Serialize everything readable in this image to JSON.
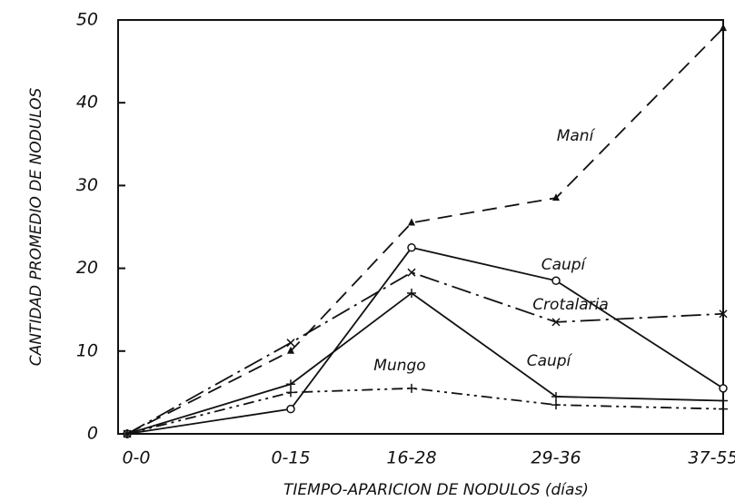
{
  "chart_data": {
    "type": "line",
    "x_label": "TIEMPO-APARICION DE NODULOS (días)",
    "y_label": "CANTIDAD PROMEDIO DE NODULOS",
    "categories": [
      "0-0",
      "0-15",
      "16-28",
      "29-36",
      "37-55"
    ],
    "ylim": [
      0,
      50
    ],
    "yticks": [
      0,
      10,
      20,
      30,
      40,
      50
    ],
    "series": [
      {
        "name": "Maní",
        "color": "#111111",
        "values": [
          0,
          10,
          25.5,
          28.5,
          49
        ]
      },
      {
        "name": "Caupí",
        "color": "#111111",
        "values": [
          0,
          3,
          22.5,
          18.5,
          5.5
        ]
      },
      {
        "name": "Crotalaria",
        "color": "#111111",
        "values": [
          0,
          11,
          19.5,
          13.5,
          14.5
        ]
      },
      {
        "name": "Caupí",
        "color": "#111111",
        "values": [
          0,
          6,
          17,
          4.5,
          4
        ]
      },
      {
        "name": "Mungo",
        "color": "#111111",
        "values": [
          0,
          5,
          5.5,
          3.5,
          3
        ]
      }
    ]
  }
}
